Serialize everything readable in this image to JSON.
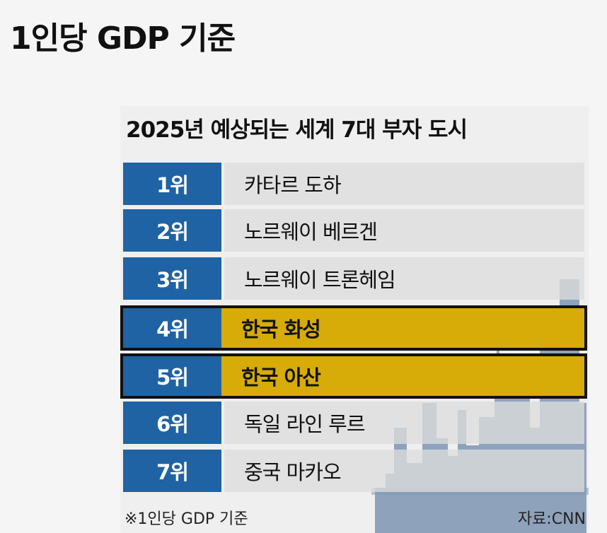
{
  "page_title": "1인당 GDP 기준",
  "infographic": {
    "title": "2025년 예상되는 세계 7대 부자 도시",
    "rows": [
      {
        "rank": "1위",
        "city": "카타르 도하",
        "highlighted": false
      },
      {
        "rank": "2위",
        "city": "노르웨이 베르겐",
        "highlighted": false
      },
      {
        "rank": "3위",
        "city": "노르웨이 트론헤임",
        "highlighted": false
      },
      {
        "rank": "4위",
        "city": "한국 화성",
        "highlighted": true
      },
      {
        "rank": "5위",
        "city": "한국 아산",
        "highlighted": true
      },
      {
        "rank": "6위",
        "city": "독일 라인 루르",
        "highlighted": false
      },
      {
        "rank": "7위",
        "city": "중국 마카오",
        "highlighted": false
      }
    ],
    "footnote": "※1인당 GDP 기준",
    "source": "자료:CNN"
  },
  "colors": {
    "rank_background": "#1f63a5",
    "highlight": "#e8b808",
    "row_background": "#dcdcdc",
    "skyline": "#7f95b3"
  }
}
